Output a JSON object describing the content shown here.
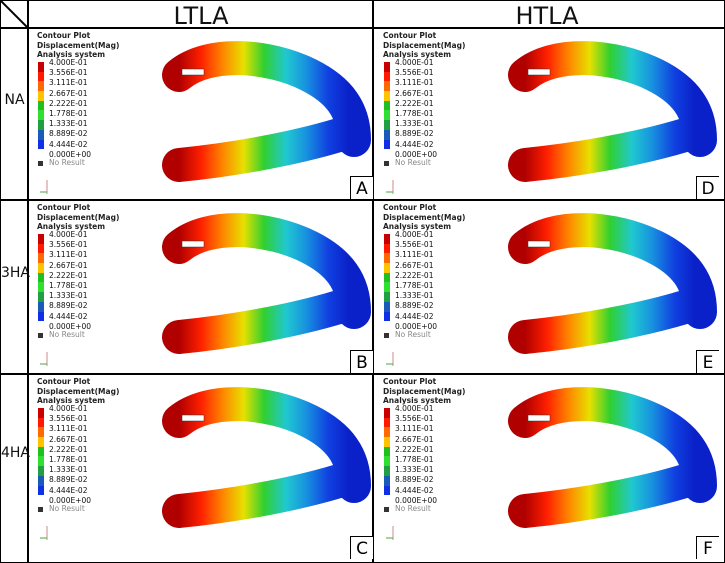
{
  "columns": [
    "LTLA",
    "HTLA"
  ],
  "rows": [
    "NA",
    "3HA",
    "4HA"
  ],
  "panel_letters": [
    [
      "A",
      "D"
    ],
    [
      "B",
      "E"
    ],
    [
      "C",
      "F"
    ]
  ],
  "legend": {
    "title_lines": [
      "Contour Plot",
      "Displacement(Mag)",
      "Analysis system"
    ],
    "values": [
      "4.000E-01",
      "3.556E-01",
      "3.111E-01",
      "2.667E-01",
      "2.222E-01",
      "1.778E-01",
      "1.333E-01",
      "8.889E-02",
      "4.444E-02",
      "0.000E+00"
    ],
    "band_colors": [
      "#c80000",
      "#ff1a00",
      "#ff6a00",
      "#ffc400",
      "#20c020",
      "#30e030",
      "#20a040",
      "#1a5ab8",
      "#1030e8",
      "#000070"
    ],
    "no_result": "No Result"
  },
  "contour_colors": [
    "#b00000",
    "#ff2000",
    "#ff8000",
    "#e8e000",
    "#30d030",
    "#20c8d0",
    "#1890e0",
    "#1040e0",
    "#0a20c8"
  ]
}
